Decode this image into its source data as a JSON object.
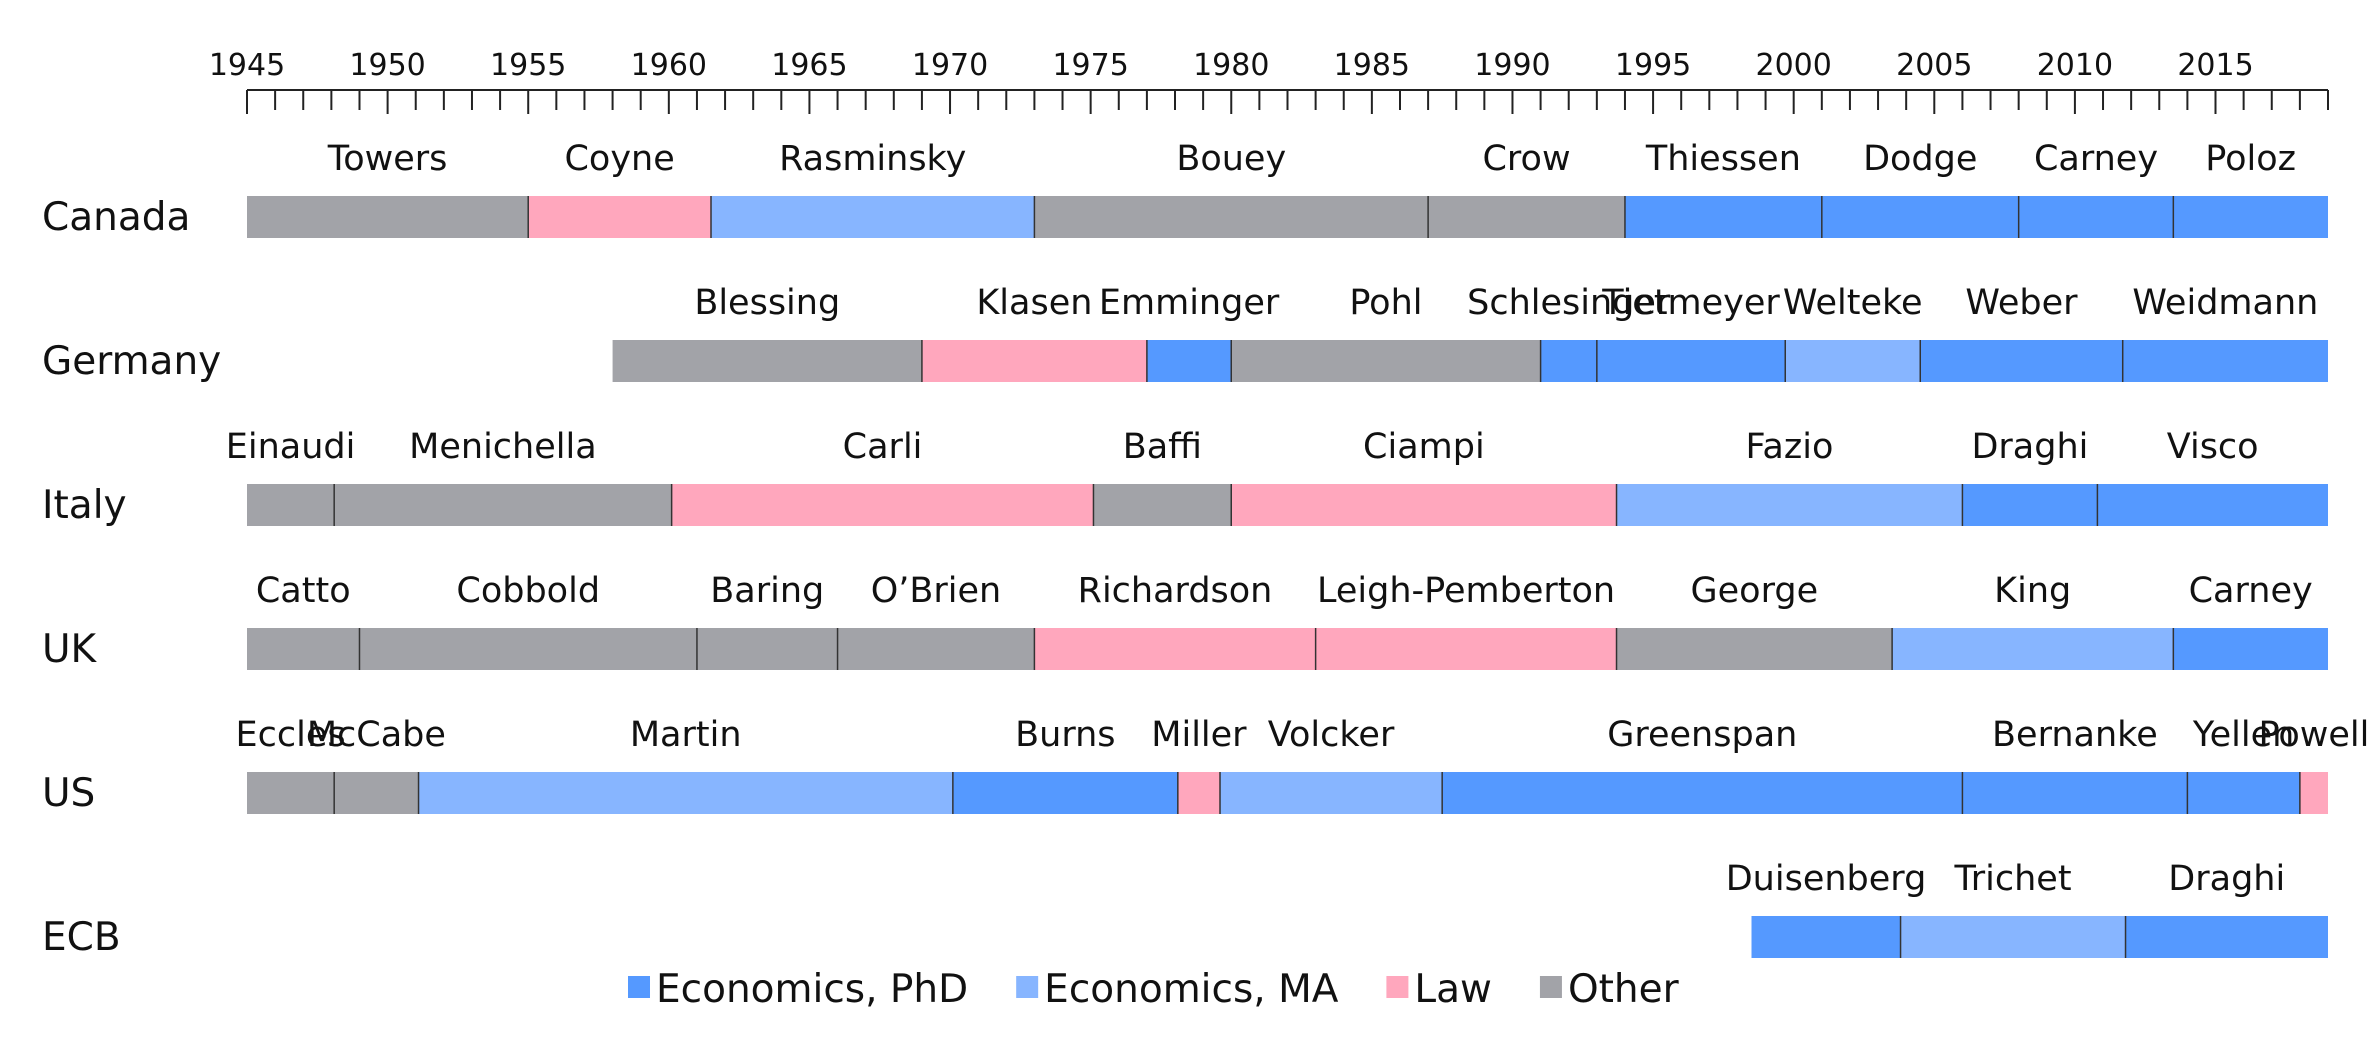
{
  "chart_data": {
    "type": "timeline",
    "xlim": [
      1945,
      2019
    ],
    "x_ticks": [
      1945,
      1950,
      1955,
      1960,
      1965,
      1970,
      1975,
      1980,
      1985,
      1990,
      1995,
      2000,
      2005,
      2010,
      2015
    ],
    "minor_tick_step": 1,
    "categories": {
      "econ_phd": {
        "label": "Economics, PhD",
        "color": "#5599ff"
      },
      "econ_ma": {
        "label": "Economics, MA",
        "color": "#87b5ff"
      },
      "law": {
        "label": "Law",
        "color": "#ffa7bd"
      },
      "other": {
        "label": "Other",
        "color": "#a2a3a8"
      }
    },
    "legend": [
      "econ_phd",
      "econ_ma",
      "law",
      "other"
    ],
    "legend_position": "bottom-center",
    "rows": [
      {
        "country": "Canada",
        "tenures": [
          {
            "name": "Towers",
            "start": 1945.0,
            "end": 1955.0,
            "field": "other"
          },
          {
            "name": "Coyne",
            "start": 1955.0,
            "end": 1961.5,
            "field": "law"
          },
          {
            "name": "Rasminsky",
            "start": 1961.5,
            "end": 1973.0,
            "field": "econ_ma"
          },
          {
            "name": "Bouey",
            "start": 1973.0,
            "end": 1987.0,
            "field": "other"
          },
          {
            "name": "Crow",
            "start": 1987.0,
            "end": 1994.0,
            "field": "other"
          },
          {
            "name": "Thiessen",
            "start": 1994.0,
            "end": 2001.0,
            "field": "econ_phd"
          },
          {
            "name": "Dodge",
            "start": 2001.0,
            "end": 2008.0,
            "field": "econ_phd"
          },
          {
            "name": "Carney",
            "start": 2008.0,
            "end": 2013.5,
            "field": "econ_phd"
          },
          {
            "name": "Poloz",
            "start": 2013.5,
            "end": 2019.0,
            "field": "econ_phd"
          }
        ]
      },
      {
        "country": "Germany",
        "tenures": [
          {
            "name": "Blessing",
            "start": 1958.0,
            "end": 1969.0,
            "field": "other"
          },
          {
            "name": "Klasen",
            "start": 1969.0,
            "end": 1977.0,
            "field": "law"
          },
          {
            "name": "Emminger",
            "start": 1977.0,
            "end": 1980.0,
            "field": "econ_phd"
          },
          {
            "name": "Pohl",
            "start": 1980.0,
            "end": 1991.0,
            "field": "other"
          },
          {
            "name": "Schlesinger",
            "start": 1991.0,
            "end": 1993.0,
            "field": "econ_phd"
          },
          {
            "name": "Tietmeyer",
            "start": 1993.0,
            "end": 1999.7,
            "field": "econ_phd"
          },
          {
            "name": "Welteke",
            "start": 1999.7,
            "end": 2004.5,
            "field": "econ_ma"
          },
          {
            "name": "Weber",
            "start": 2004.5,
            "end": 2011.7,
            "field": "econ_phd"
          },
          {
            "name": "Weidmann",
            "start": 2011.7,
            "end": 2019.0,
            "field": "econ_phd"
          }
        ]
      },
      {
        "country": "Italy",
        "tenures": [
          {
            "name": "Einaudi",
            "start": 1945.0,
            "end": 1948.1,
            "field": "other"
          },
          {
            "name": "Menichella",
            "start": 1948.1,
            "end": 1960.1,
            "field": "other"
          },
          {
            "name": "Carli",
            "start": 1960.1,
            "end": 1975.1,
            "field": "law"
          },
          {
            "name": "Baffi",
            "start": 1975.1,
            "end": 1980.0,
            "field": "other"
          },
          {
            "name": "Ciampi",
            "start": 1980.0,
            "end": 1993.7,
            "field": "law"
          },
          {
            "name": "Fazio",
            "start": 1993.7,
            "end": 2006.0,
            "field": "econ_ma"
          },
          {
            "name": "Draghi",
            "start": 2006.0,
            "end": 2010.8,
            "field": "econ_phd"
          },
          {
            "name": "Visco",
            "start": 2010.8,
            "end": 2019.0,
            "field": "econ_phd"
          }
        ]
      },
      {
        "country": "UK",
        "tenures": [
          {
            "name": "Catto",
            "start": 1945.0,
            "end": 1949.0,
            "field": "other"
          },
          {
            "name": "Cobbold",
            "start": 1949.0,
            "end": 1961.0,
            "field": "other"
          },
          {
            "name": "Baring",
            "start": 1961.0,
            "end": 1966.0,
            "field": "other"
          },
          {
            "name": "O’Brien",
            "start": 1966.0,
            "end": 1973.0,
            "field": "other"
          },
          {
            "name": "Richardson",
            "start": 1973.0,
            "end": 1983.0,
            "field": "law"
          },
          {
            "name": "Leigh-Pemberton",
            "start": 1983.0,
            "end": 1993.7,
            "field": "law"
          },
          {
            "name": "George",
            "start": 1993.7,
            "end": 2003.5,
            "field": "other"
          },
          {
            "name": "King",
            "start": 2003.5,
            "end": 2013.5,
            "field": "econ_ma"
          },
          {
            "name": "Carney",
            "start": 2013.5,
            "end": 2019.0,
            "field": "econ_phd"
          }
        ]
      },
      {
        "country": "US",
        "tenures": [
          {
            "name": "Eccles",
            "start": 1945.0,
            "end": 1948.1,
            "field": "other"
          },
          {
            "name": "McCabe",
            "start": 1948.1,
            "end": 1951.1,
            "field": "other"
          },
          {
            "name": "Martin",
            "start": 1951.1,
            "end": 1970.1,
            "field": "econ_ma"
          },
          {
            "name": "Burns",
            "start": 1970.1,
            "end": 1978.1,
            "field": "econ_phd"
          },
          {
            "name": "Miller",
            "start": 1978.1,
            "end": 1979.6,
            "field": "law"
          },
          {
            "name": "Volcker",
            "start": 1979.6,
            "end": 1987.5,
            "field": "econ_ma"
          },
          {
            "name": "Greenspan",
            "start": 1987.5,
            "end": 2006.0,
            "field": "econ_phd"
          },
          {
            "name": "Bernanke",
            "start": 2006.0,
            "end": 2014.0,
            "field": "econ_phd"
          },
          {
            "name": "Yellen",
            "start": 2014.0,
            "end": 2018.0,
            "field": "econ_phd"
          },
          {
            "name": "Powell",
            "start": 2018.0,
            "end": 2019.0,
            "field": "law"
          }
        ]
      },
      {
        "country": "ECB",
        "tenures": [
          {
            "name": "Duisenberg",
            "start": 1998.5,
            "end": 2003.8,
            "field": "econ_phd"
          },
          {
            "name": "Trichet",
            "start": 2003.8,
            "end": 2011.8,
            "field": "econ_ma"
          },
          {
            "name": "Draghi",
            "start": 2011.8,
            "end": 2019.0,
            "field": "econ_phd"
          }
        ]
      }
    ]
  }
}
